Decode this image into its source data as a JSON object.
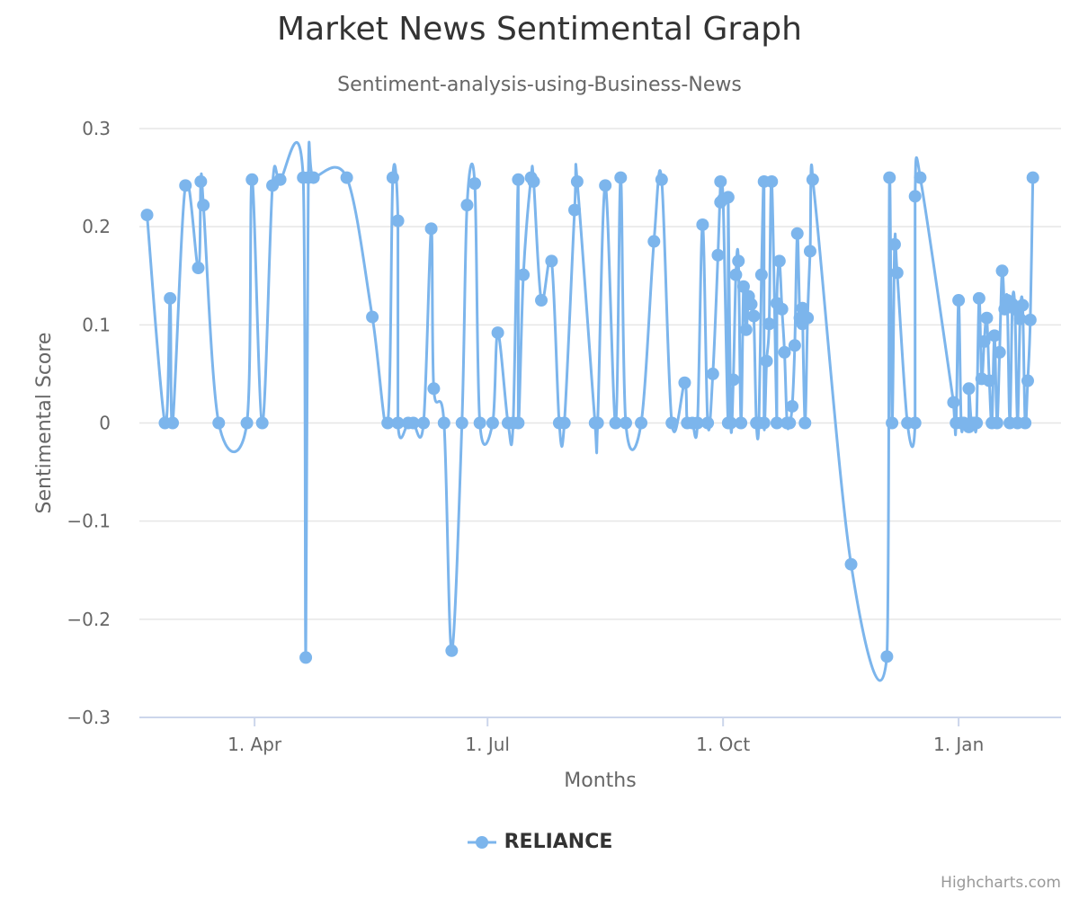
{
  "chart_data": {
    "type": "line",
    "title": "Market News Sentimental Graph",
    "subtitle": "Sentiment-analysis-using-Business-News",
    "xlabel": "Months",
    "ylabel": "Sentimental Score",
    "ylim": [
      -0.3,
      0.3
    ],
    "yticks": [
      -0.3,
      -0.2,
      -0.1,
      0,
      0.1,
      0.2,
      0.3
    ],
    "ytick_labels": [
      "−0.3",
      "−0.2",
      "−0.1",
      "0",
      "0.1",
      "0.2",
      "0.3"
    ],
    "xlim": [
      "2017-02-15",
      "2018-02-10"
    ],
    "xticks": [
      "2017-04-01",
      "2017-07-01",
      "2017-10-01",
      "2018-01-01"
    ],
    "xtick_labels": [
      "1. Apr",
      "1. Jul",
      "1. Oct",
      "1. Jan"
    ],
    "grid": true,
    "legend_position": "bottom-center",
    "colors": {
      "series": "#7cb5ec",
      "grid": "#e6e6e6",
      "axis_line": "#ccd6eb",
      "text": "#666666",
      "title": "#333333"
    },
    "credits": "Highcharts.com",
    "series": [
      {
        "name": "RELIANCE",
        "points": [
          [
            "2017-02-18",
            0.212
          ],
          [
            "2017-02-25",
            0.0
          ],
          [
            "2017-02-27",
            0.127
          ],
          [
            "2017-02-28",
            0.0
          ],
          [
            "2017-03-05",
            0.242
          ],
          [
            "2017-03-10",
            0.158
          ],
          [
            "2017-03-11",
            0.246
          ],
          [
            "2017-03-12",
            0.222
          ],
          [
            "2017-03-18",
            0.0
          ],
          [
            "2017-03-29",
            0.0
          ],
          [
            "2017-03-31",
            0.248
          ],
          [
            "2017-04-04",
            0.0
          ],
          [
            "2017-04-08",
            0.242
          ],
          [
            "2017-04-11",
            0.248
          ],
          [
            "2017-04-20",
            0.25
          ],
          [
            "2017-04-21",
            -0.239
          ],
          [
            "2017-04-22",
            0.25
          ],
          [
            "2017-04-24",
            0.25
          ],
          [
            "2017-05-07",
            0.25
          ],
          [
            "2017-05-17",
            0.108
          ],
          [
            "2017-05-23",
            0.0
          ],
          [
            "2017-05-25",
            0.25
          ],
          [
            "2017-05-27",
            0.206
          ],
          [
            "2017-05-27",
            0.0
          ],
          [
            "2017-05-31",
            0.0
          ],
          [
            "2017-06-02",
            0.0
          ],
          [
            "2017-06-06",
            0.0
          ],
          [
            "2017-06-09",
            0.198
          ],
          [
            "2017-06-10",
            0.035
          ],
          [
            "2017-06-14",
            0.0
          ],
          [
            "2017-06-17",
            -0.232
          ],
          [
            "2017-06-21",
            0.0
          ],
          [
            "2017-06-23",
            0.222
          ],
          [
            "2017-06-26",
            0.244
          ],
          [
            "2017-06-28",
            0.0
          ],
          [
            "2017-07-03",
            0.0
          ],
          [
            "2017-07-05",
            0.092
          ],
          [
            "2017-07-09",
            0.0
          ],
          [
            "2017-07-11",
            0.0
          ],
          [
            "2017-07-13",
            0.248
          ],
          [
            "2017-07-13",
            0.0
          ],
          [
            "2017-07-15",
            0.151
          ],
          [
            "2017-07-18",
            0.25
          ],
          [
            "2017-07-19",
            0.246
          ],
          [
            "2017-07-22",
            0.125
          ],
          [
            "2017-07-26",
            0.165
          ],
          [
            "2017-07-29",
            0.0
          ],
          [
            "2017-07-31",
            0.0
          ],
          [
            "2017-08-04",
            0.217
          ],
          [
            "2017-08-05",
            0.246
          ],
          [
            "2017-08-12",
            0.0
          ],
          [
            "2017-08-13",
            0.0
          ],
          [
            "2017-08-16",
            0.242
          ],
          [
            "2017-08-20",
            0.0
          ],
          [
            "2017-08-22",
            0.25
          ],
          [
            "2017-08-24",
            0.0
          ],
          [
            "2017-08-30",
            0.0
          ],
          [
            "2017-09-04",
            0.185
          ],
          [
            "2017-09-07",
            0.248
          ],
          [
            "2017-09-11",
            0.0
          ],
          [
            "2017-09-16",
            0.041
          ],
          [
            "2017-09-17",
            0.0
          ],
          [
            "2017-09-19",
            0.0
          ],
          [
            "2017-09-21",
            0.0
          ],
          [
            "2017-09-23",
            0.202
          ],
          [
            "2017-09-25",
            0.0
          ],
          [
            "2017-09-27",
            0.05
          ],
          [
            "2017-09-29",
            0.171
          ],
          [
            "2017-09-30",
            0.246
          ],
          [
            "2017-09-30",
            0.225
          ],
          [
            "2017-10-01",
            0.228
          ],
          [
            "2017-10-03",
            0.0
          ],
          [
            "2017-10-03",
            0.23
          ],
          [
            "2017-10-04",
            0.0
          ],
          [
            "2017-10-05",
            0.044
          ],
          [
            "2017-10-06",
            0.151
          ],
          [
            "2017-10-07",
            0.165
          ],
          [
            "2017-10-08",
            0.0
          ],
          [
            "2017-10-09",
            0.139
          ],
          [
            "2017-10-10",
            0.095
          ],
          [
            "2017-10-11",
            0.129
          ],
          [
            "2017-10-12",
            0.121
          ],
          [
            "2017-10-13",
            0.109
          ],
          [
            "2017-10-14",
            0.0
          ],
          [
            "2017-10-15",
            0.0
          ],
          [
            "2017-10-16",
            0.151
          ],
          [
            "2017-10-17",
            0.246
          ],
          [
            "2017-10-17",
            0.0
          ],
          [
            "2017-10-18",
            0.063
          ],
          [
            "2017-10-19",
            0.101
          ],
          [
            "2017-10-20",
            0.246
          ],
          [
            "2017-10-22",
            0.0
          ],
          [
            "2017-10-22",
            0.122
          ],
          [
            "2017-10-23",
            0.165
          ],
          [
            "2017-10-24",
            0.116
          ],
          [
            "2017-10-25",
            0.072
          ],
          [
            "2017-10-26",
            0.0
          ],
          [
            "2017-10-27",
            0.0
          ],
          [
            "2017-10-28",
            0.017
          ],
          [
            "2017-10-29",
            0.079
          ],
          [
            "2017-10-30",
            0.193
          ],
          [
            "2017-10-31",
            0.107
          ],
          [
            "2017-11-01",
            0.101
          ],
          [
            "2017-11-01",
            0.117
          ],
          [
            "2017-11-02",
            0.0
          ],
          [
            "2017-11-03",
            0.107
          ],
          [
            "2017-11-04",
            0.175
          ],
          [
            "2017-11-05",
            0.248
          ],
          [
            "2017-11-20",
            -0.144
          ],
          [
            "2017-12-04",
            -0.238
          ],
          [
            "2017-12-05",
            0.25
          ],
          [
            "2017-12-06",
            0.0
          ],
          [
            "2017-12-07",
            0.182
          ],
          [
            "2017-12-08",
            0.153
          ],
          [
            "2017-12-12",
            0.0
          ],
          [
            "2017-12-15",
            0.0
          ],
          [
            "2017-12-15",
            0.231
          ],
          [
            "2017-12-17",
            0.25
          ],
          [
            "2017-12-30",
            0.021
          ],
          [
            "2017-12-31",
            0.0
          ],
          [
            "2018-01-01",
            0.125
          ],
          [
            "2018-01-02",
            0.0
          ],
          [
            "2018-01-03",
            0.0
          ],
          [
            "2018-01-05",
            -0.004
          ],
          [
            "2018-01-05",
            0.035
          ],
          [
            "2018-01-06",
            0.0
          ],
          [
            "2018-01-07",
            0.0
          ],
          [
            "2018-01-08",
            0.0
          ],
          [
            "2018-01-09",
            0.127
          ],
          [
            "2018-01-10",
            0.045
          ],
          [
            "2018-01-11",
            0.083
          ],
          [
            "2018-01-12",
            0.107
          ],
          [
            "2018-01-13",
            0.043
          ],
          [
            "2018-01-14",
            0.0
          ],
          [
            "2018-01-15",
            0.089
          ],
          [
            "2018-01-16",
            0.0
          ],
          [
            "2018-01-17",
            0.072
          ],
          [
            "2018-01-18",
            0.155
          ],
          [
            "2018-01-19",
            0.116
          ],
          [
            "2018-01-20",
            0.125
          ],
          [
            "2018-01-21",
            0.0
          ],
          [
            "2018-01-22",
            0.121
          ],
          [
            "2018-01-23",
            0.116
          ],
          [
            "2018-01-24",
            0.0
          ],
          [
            "2018-01-25",
            0.106
          ],
          [
            "2018-01-26",
            0.12
          ],
          [
            "2018-01-27",
            0.0
          ],
          [
            "2018-01-28",
            0.043
          ],
          [
            "2018-01-29",
            0.105
          ],
          [
            "2018-01-30",
            0.25
          ]
        ]
      }
    ]
  }
}
